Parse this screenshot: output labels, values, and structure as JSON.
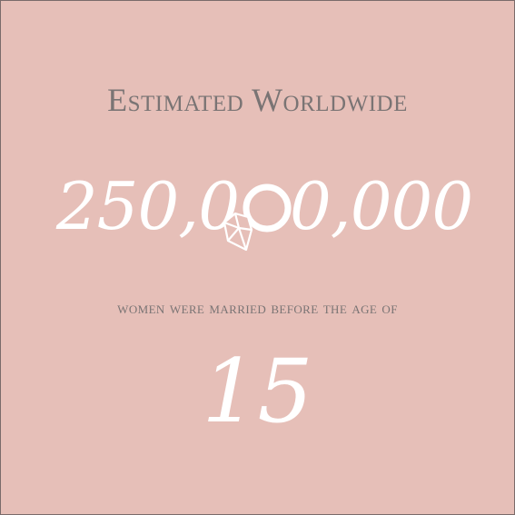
{
  "background_color": "#e6bfb8",
  "text_gray": "#7a7474",
  "accent_white": "#ffffff",
  "heading": "Estimated Worldwide",
  "number": {
    "before_ring": "250,0",
    "after_ring": "0,000"
  },
  "ring_icon": "diamond-ring-icon",
  "subtext": "women were married before the age of",
  "age": "15"
}
